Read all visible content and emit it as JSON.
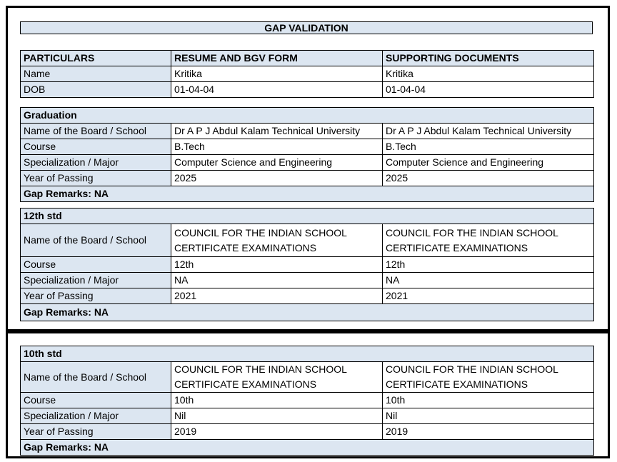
{
  "document": {
    "title": "GAP VALIDATION"
  },
  "colors": {
    "header_fill": "#dce6f1",
    "border": "#000000",
    "background": "#ffffff"
  },
  "particulars_table": {
    "headers": [
      "PARTICULARS",
      "RESUME AND BGV FORM",
      "SUPPORTING DOCUMENTS"
    ],
    "rows": [
      {
        "label": "Name",
        "resume": "Kritika",
        "supporting": "Kritika"
      },
      {
        "label": "DOB",
        "resume": "01-04-04",
        "supporting": "01-04-04"
      }
    ]
  },
  "sections": [
    {
      "title": "Graduation",
      "rows": [
        {
          "label": "Name of the Board / School",
          "resume": "Dr A P J Abdul Kalam Technical University",
          "supporting": "Dr A P J Abdul Kalam Technical University"
        },
        {
          "label": "Course",
          "resume": "B.Tech",
          "supporting": "B.Tech"
        },
        {
          "label": "Specialization / Major",
          "resume": "Computer Science and Engineering",
          "supporting": "Computer Science and Engineering"
        },
        {
          "label": "Year of Passing",
          "resume": "2025",
          "supporting": "2025"
        }
      ],
      "gap_remarks": "Gap Remarks: NA"
    },
    {
      "title": "12th std",
      "rows": [
        {
          "label": "Name of the Board / School",
          "resume": "COUNCIL FOR THE INDIAN SCHOOL CERTIFICATE EXAMINATIONS",
          "supporting": "COUNCIL FOR THE INDIAN SCHOOL CERTIFICATE EXAMINATIONS"
        },
        {
          "label": "Course",
          "resume": "12th",
          "supporting": "12th"
        },
        {
          "label": "Specialization / Major",
          "resume": "NA",
          "supporting": "NA"
        },
        {
          "label": "Year of Passing",
          "resume": "2021",
          "supporting": "2021"
        }
      ],
      "gap_remarks": "Gap Remarks: NA"
    },
    {
      "title": "10th std",
      "rows": [
        {
          "label": "Name of the Board / School",
          "resume": "COUNCIL FOR THE INDIAN SCHOOL CERTIFICATE EXAMINATIONS",
          "supporting": "COUNCIL FOR THE INDIAN SCHOOL CERTIFICATE EXAMINATIONS"
        },
        {
          "label": "Course",
          "resume": "10th",
          "supporting": "10th"
        },
        {
          "label": "Specialization / Major",
          "resume": "Nil",
          "supporting": "Nil"
        },
        {
          "label": "Year of Passing",
          "resume": "2019",
          "supporting": "2019"
        }
      ],
      "gap_remarks": "Gap Remarks: NA"
    }
  ]
}
